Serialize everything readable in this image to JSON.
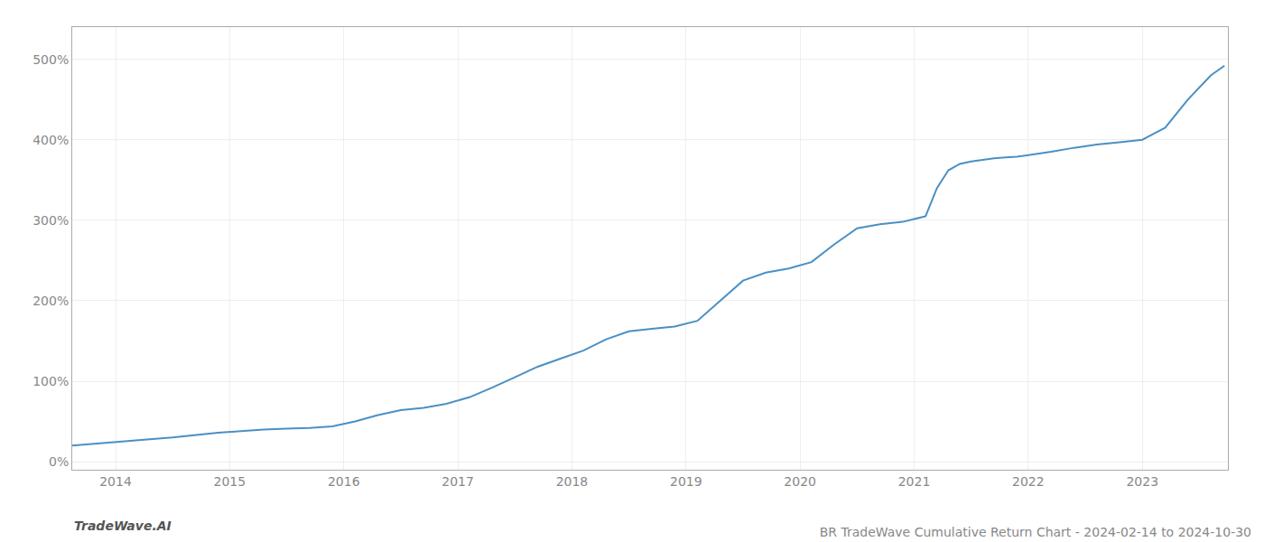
{
  "chart_data": {
    "type": "line",
    "title": "BR TradeWave Cumulative Return Chart - 2024-02-14 to 2024-10-30",
    "annotations": [
      "TradeWave.AI"
    ],
    "x": [
      2013.62,
      2013.7,
      2013.8,
      2013.9,
      2014.0,
      2014.15,
      2014.3,
      2014.5,
      2014.7,
      2014.9,
      2015.1,
      2015.3,
      2015.5,
      2015.7,
      2015.9,
      2016.1,
      2016.3,
      2016.5,
      2016.7,
      2016.9,
      2017.1,
      2017.3,
      2017.5,
      2017.7,
      2017.9,
      2018.1,
      2018.3,
      2018.5,
      2018.7,
      2018.9,
      2019.1,
      2019.3,
      2019.5,
      2019.7,
      2019.9,
      2020.1,
      2020.3,
      2020.5,
      2020.7,
      2020.9,
      2021.1,
      2021.2,
      2021.3,
      2021.4,
      2021.5,
      2021.6,
      2021.7,
      2021.8,
      2021.9,
      2022.0,
      2022.2,
      2022.4,
      2022.6,
      2022.8,
      2023.0,
      2023.2,
      2023.4,
      2023.6,
      2023.72
    ],
    "values": [
      20,
      21,
      22,
      23,
      24,
      26,
      28,
      30,
      33,
      36,
      38,
      40,
      41,
      42,
      44,
      50,
      58,
      64,
      67,
      72,
      80,
      92,
      105,
      118,
      128,
      138,
      152,
      162,
      165,
      168,
      175,
      200,
      225,
      235,
      240,
      248,
      270,
      290,
      295,
      298,
      305,
      340,
      362,
      370,
      373,
      375,
      377,
      378,
      379,
      381,
      385,
      390,
      394,
      397,
      400,
      415,
      450,
      480,
      492
    ],
    "color": "#4a90c4",
    "xlim": [
      2013.62,
      2023.75
    ],
    "ylim": [
      -10,
      540
    ],
    "xticks": [
      2014,
      2015,
      2016,
      2017,
      2018,
      2019,
      2020,
      2021,
      2022,
      2023
    ],
    "yticks": [
      {
        "value": 0,
        "label": "0%"
      },
      {
        "value": 100,
        "label": "100%"
      },
      {
        "value": 200,
        "label": "200%"
      },
      {
        "value": 300,
        "label": "300%"
      },
      {
        "value": 400,
        "label": "400%"
      },
      {
        "value": 500,
        "label": "500%"
      }
    ],
    "grid": true
  }
}
